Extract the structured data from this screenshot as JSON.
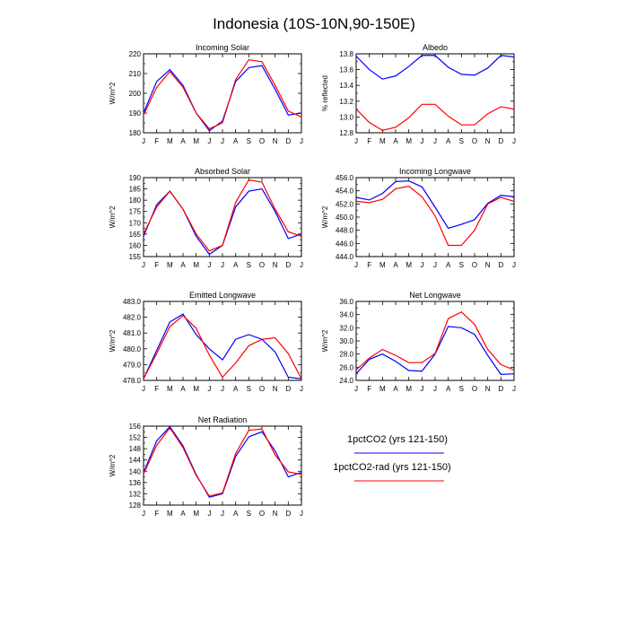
{
  "figure": {
    "title": "Indonesia (10S-10N,90-150E)"
  },
  "series_styles": [
    {
      "name": "1pctCO2 (yrs 121-150)",
      "color": "#0000ff"
    },
    {
      "name": "1pctCO2-rad (yrs 121-150)",
      "color": "#ff0000"
    }
  ],
  "chart_data": [
    {
      "type": "line",
      "title": "Incoming Solar",
      "ylabel": "W/m^2",
      "ylim": [
        180,
        220
      ],
      "yticks": [
        "180",
        "190",
        "200",
        "210",
        "220"
      ],
      "categories": [
        "J",
        "F",
        "M",
        "A",
        "M",
        "J",
        "J",
        "A",
        "S",
        "O",
        "N",
        "D",
        "J"
      ],
      "series": [
        {
          "name": "1pctCO2 (yrs 121-150)",
          "values": [
            190,
            206,
            212,
            204,
            190,
            181,
            186,
            206,
            213,
            214,
            202,
            189,
            190
          ]
        },
        {
          "name": "1pctCO2-rad (yrs 121-150)",
          "values": [
            189,
            203,
            211,
            203,
            190,
            182,
            185,
            207,
            217,
            216,
            204,
            191,
            188
          ]
        }
      ]
    },
    {
      "type": "line",
      "title": "Albedo",
      "ylabel": "% reflected",
      "ylim": [
        12.8,
        13.8
      ],
      "yticks": [
        "12.8",
        "13.0",
        "13.2",
        "13.4",
        "13.6",
        "13.8"
      ],
      "categories": [
        "J",
        "F",
        "M",
        "A",
        "M",
        "J",
        "J",
        "A",
        "S",
        "O",
        "N",
        "D",
        "J"
      ],
      "series": [
        {
          "name": "1pctCO2 (yrs 121-150)",
          "values": [
            13.77,
            13.6,
            13.48,
            13.52,
            13.64,
            13.78,
            13.78,
            13.63,
            13.54,
            13.53,
            13.62,
            13.78,
            13.76
          ]
        },
        {
          "name": "1pctCO2-rad (yrs 121-150)",
          "values": [
            13.1,
            12.93,
            12.83,
            12.87,
            12.99,
            13.16,
            13.16,
            13.01,
            12.9,
            12.9,
            13.04,
            13.13,
            13.1
          ]
        }
      ]
    },
    {
      "type": "line",
      "title": "Absorbed Solar",
      "ylabel": "W/m^2",
      "ylim": [
        155,
        190
      ],
      "yticks": [
        "155",
        "160",
        "165",
        "170",
        "175",
        "180",
        "185",
        "190"
      ],
      "categories": [
        "J",
        "F",
        "M",
        "A",
        "M",
        "J",
        "J",
        "A",
        "S",
        "O",
        "N",
        "D",
        "J"
      ],
      "series": [
        {
          "name": "1pctCO2 (yrs 121-150)",
          "values": [
            164,
            178,
            184,
            176,
            164,
            156,
            160,
            177,
            184,
            185,
            175,
            163,
            165
          ]
        },
        {
          "name": "1pctCO2-rad (yrs 121-150)",
          "values": [
            165,
            177,
            184,
            176,
            165,
            157.5,
            160,
            179,
            189,
            188,
            176,
            166,
            164
          ]
        }
      ]
    },
    {
      "type": "line",
      "title": "Incoming Longwave",
      "ylabel": "W/m^2",
      "ylim": [
        444,
        456
      ],
      "yticks": [
        "444.0",
        "446.0",
        "448.0",
        "450.0",
        "452.0",
        "454.0",
        "456.0"
      ],
      "categories": [
        "J",
        "F",
        "M",
        "A",
        "M",
        "J",
        "J",
        "A",
        "S",
        "O",
        "N",
        "D",
        "J"
      ],
      "series": [
        {
          "name": "1pctCO2 (yrs 121-150)",
          "values": [
            453,
            452.6,
            453.6,
            455.4,
            455.5,
            454.6,
            451.5,
            448.3,
            448.9,
            449.6,
            452.1,
            453.3,
            453.1
          ]
        },
        {
          "name": "1pctCO2-rad (yrs 121-150)",
          "values": [
            452.4,
            452.2,
            452.7,
            454.3,
            454.7,
            453.1,
            450.2,
            445.7,
            445.7,
            448,
            452,
            453,
            452.4
          ]
        }
      ]
    },
    {
      "type": "line",
      "title": "Emitted Longwave",
      "ylabel": "W/m^2",
      "ylim": [
        478,
        483
      ],
      "yticks": [
        "478.0",
        "479.0",
        "480.0",
        "481.0",
        "482.0",
        "483.0"
      ],
      "categories": [
        "J",
        "F",
        "M",
        "A",
        "M",
        "J",
        "J",
        "A",
        "S",
        "O",
        "N",
        "D",
        "J"
      ],
      "series": [
        {
          "name": "1pctCO2 (yrs 121-150)",
          "values": [
            478.1,
            479.9,
            481.7,
            482.2,
            480.9,
            480,
            479.3,
            480.6,
            480.9,
            480.6,
            479.8,
            478.2,
            478.1
          ]
        },
        {
          "name": "1pctCO2-rad (yrs 121-150)",
          "values": [
            478.1,
            479.7,
            481.4,
            482.1,
            481.3,
            479.6,
            478.2,
            479.1,
            480.2,
            480.6,
            480.7,
            479.7,
            478.1
          ]
        }
      ]
    },
    {
      "type": "line",
      "title": "Net Longwave",
      "ylabel": "W/m^2",
      "ylim": [
        24,
        36
      ],
      "yticks": [
        "24.0",
        "26.0",
        "28.0",
        "30.0",
        "32.0",
        "34.0",
        "36.0"
      ],
      "categories": [
        "J",
        "F",
        "M",
        "A",
        "M",
        "J",
        "J",
        "A",
        "S",
        "O",
        "N",
        "D",
        "J"
      ],
      "series": [
        {
          "name": "1pctCO2 (yrs 121-150)",
          "values": [
            25,
            27.2,
            28,
            26.9,
            25.5,
            25.4,
            28,
            32.2,
            32,
            31,
            27.8,
            24.9,
            25
          ]
        },
        {
          "name": "1pctCO2-rad (yrs 121-150)",
          "values": [
            25.6,
            27.4,
            28.7,
            27.8,
            26.7,
            26.7,
            28.1,
            33.4,
            34.4,
            32.5,
            28.7,
            26.4,
            25.6
          ]
        }
      ]
    },
    {
      "type": "line",
      "title": "Net Radiation",
      "ylabel": "W/m^2",
      "ylim": [
        128,
        156
      ],
      "yticks": [
        "128",
        "132",
        "136",
        "140",
        "144",
        "148",
        "152",
        "156"
      ],
      "categories": [
        "J",
        "F",
        "M",
        "A",
        "M",
        "J",
        "J",
        "A",
        "S",
        "O",
        "N",
        "D",
        "J"
      ],
      "series": [
        {
          "name": "1pctCO2 (yrs 121-150)",
          "values": [
            139.5,
            150.8,
            155.8,
            149,
            138.8,
            130.8,
            132,
            145.3,
            152.2,
            154,
            147.2,
            138,
            139.6
          ]
        },
        {
          "name": "1pctCO2-rad (yrs 121-150)",
          "values": [
            139,
            149.2,
            155.4,
            148.4,
            138.5,
            131.2,
            132.3,
            146.3,
            154.5,
            155,
            145.8,
            139.8,
            138.9
          ]
        }
      ]
    }
  ],
  "legend": {
    "items": [
      {
        "label": "1pctCO2 (yrs 121-150)",
        "color": "#0000ff"
      },
      {
        "label": "1pctCO2-rad (yrs 121-150)",
        "color": "#ff0000"
      }
    ]
  }
}
